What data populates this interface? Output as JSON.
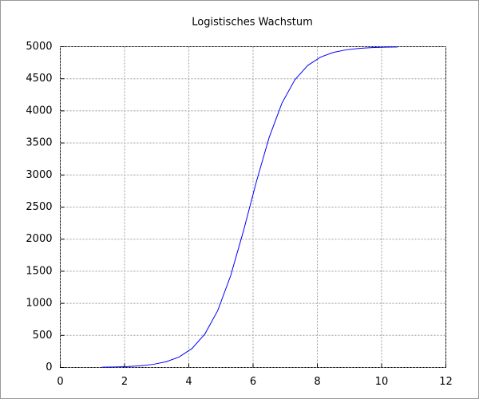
{
  "chart_data": {
    "type": "line",
    "title": "Logistisches Wachstum",
    "x": [
      1.3,
      1.7,
      2.1,
      2.5,
      2.9,
      3.3,
      3.7,
      4.1,
      4.5,
      4.9,
      5.3,
      5.7,
      6.1,
      6.5,
      6.9,
      7.3,
      7.7,
      8.1,
      8.5,
      8.9,
      9.3,
      9.7,
      10.1,
      10.5
    ],
    "series": [
      {
        "color": "#0000ff",
        "values": [
          4,
          8,
          14,
          27,
          49,
          90,
          164,
          296,
          522,
          887,
          1427,
          2126,
          2890,
          3585,
          4122,
          4484,
          4707,
          4838,
          4911,
          4951,
          4974,
          4986,
          4992,
          4996
        ]
      }
    ],
    "xlim": [
      0,
      12
    ],
    "xticks": [
      0,
      2,
      4,
      6,
      8,
      10,
      12
    ],
    "ylim": [
      0,
      5000
    ],
    "yticks": [
      0,
      500,
      1000,
      1500,
      2000,
      2500,
      3000,
      3500,
      4000,
      4500,
      5000
    ],
    "grid": true
  }
}
